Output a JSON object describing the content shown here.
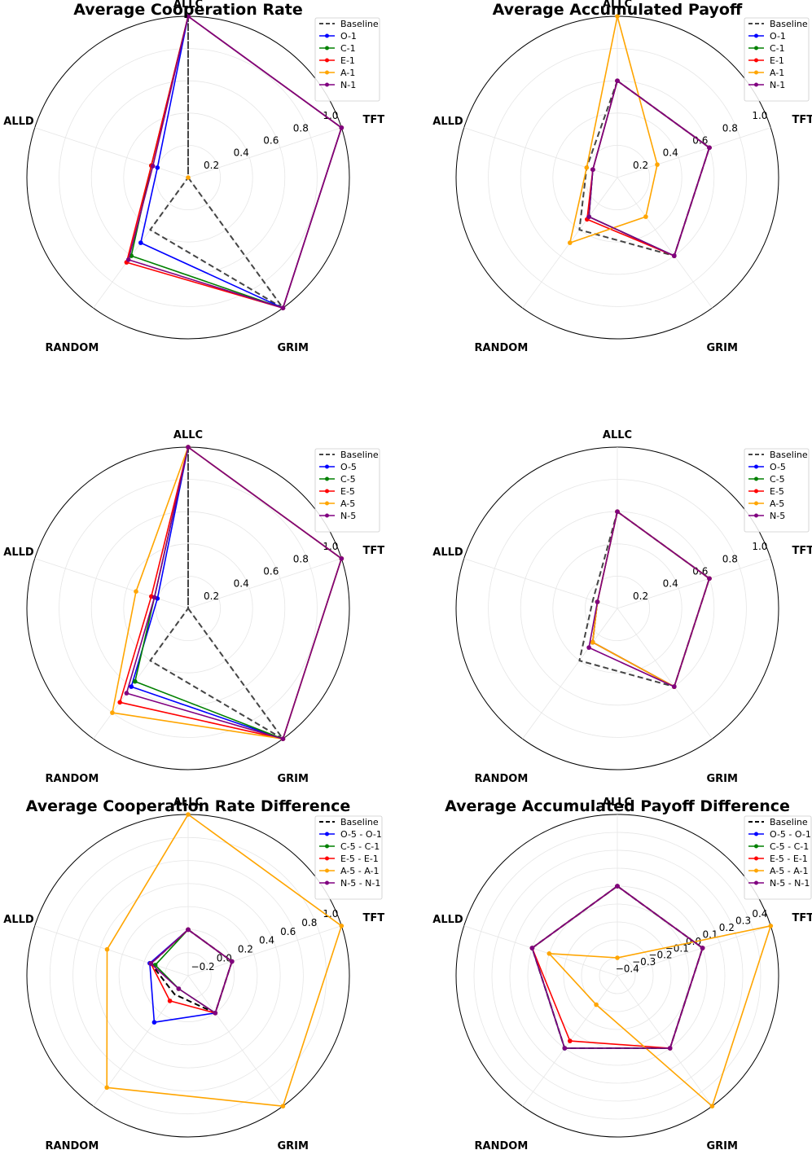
{
  "chart_data": [
    {
      "type": "radar",
      "title": "Average Cooperation Rate",
      "categories": [
        "ALLC",
        "TFT",
        "GRIM",
        "RANDOM",
        "ALLD"
      ],
      "radial_ticks": [
        "0.2",
        "0.4",
        "0.6",
        "0.8",
        "1.0"
      ],
      "tick_values": [
        0.2,
        0.4,
        0.6,
        0.8,
        1.0
      ],
      "rlim": [
        0,
        1.0
      ],
      "legend_position": "top-right",
      "series": [
        {
          "name": "Baseline",
          "color": "#444444",
          "dashed": true,
          "markers": false,
          "values": [
            1.0,
            0.0,
            1.0,
            0.4,
            0.0
          ]
        },
        {
          "name": "O-1",
          "color": "#0000ff",
          "values": [
            1.0,
            1.0,
            1.0,
            0.5,
            0.2
          ]
        },
        {
          "name": "C-1",
          "color": "#008000",
          "values": [
            1.0,
            1.0,
            1.0,
            0.6,
            0.24
          ]
        },
        {
          "name": "E-1",
          "color": "#ff0000",
          "values": [
            1.0,
            1.0,
            1.0,
            0.65,
            0.24
          ]
        },
        {
          "name": "A-1",
          "color": "#ffa500",
          "values": [
            null,
            null,
            null,
            null,
            null
          ],
          "extra_point": 0.0
        },
        {
          "name": "N-1",
          "color": "#800080",
          "values": [
            1.0,
            1.0,
            1.0,
            0.63,
            0.23
          ]
        }
      ]
    },
    {
      "type": "radar",
      "title": "Average Accumulated Payoff",
      "categories": [
        "ALLC",
        "TFT",
        "GRIM",
        "RANDOM",
        "ALLD"
      ],
      "radial_ticks": [
        "0.2",
        "0.4",
        "0.6",
        "0.8",
        "1.0"
      ],
      "tick_values": [
        0.2,
        0.4,
        0.6,
        0.8,
        1.0
      ],
      "rlim": [
        0,
        1.0
      ],
      "legend_position": "top-right",
      "series": [
        {
          "name": "Baseline",
          "color": "#444444",
          "dashed": true,
          "markers": false,
          "values": [
            0.6,
            0.6,
            0.6,
            0.4,
            0.2
          ]
        },
        {
          "name": "O-1",
          "color": "#0000ff",
          "values": [
            0.6,
            0.6,
            0.6,
            0.3,
            0.16
          ]
        },
        {
          "name": "C-1",
          "color": "#008000",
          "values": [
            0.6,
            0.6,
            0.6,
            0.3,
            0.16
          ]
        },
        {
          "name": "E-1",
          "color": "#ff0000",
          "values": [
            0.6,
            0.6,
            0.6,
            0.32,
            0.16
          ]
        },
        {
          "name": "A-1",
          "color": "#ffa500",
          "values": [
            1.0,
            0.26,
            0.3,
            0.5,
            0.2
          ]
        },
        {
          "name": "N-1",
          "color": "#800080",
          "values": [
            0.6,
            0.6,
            0.6,
            0.3,
            0.16
          ]
        }
      ]
    },
    {
      "type": "radar",
      "title": "",
      "categories": [
        "ALLC",
        "TFT",
        "GRIM",
        "RANDOM",
        "ALLD"
      ],
      "radial_ticks": [
        "0.2",
        "0.4",
        "0.6",
        "0.8",
        "1.0"
      ],
      "tick_values": [
        0.2,
        0.4,
        0.6,
        0.8,
        1.0
      ],
      "rlim": [
        0,
        1.0
      ],
      "legend_position": "top-right",
      "series": [
        {
          "name": "Baseline",
          "color": "#444444",
          "dashed": true,
          "markers": false,
          "values": [
            1.0,
            0.0,
            1.0,
            0.4,
            0.0
          ]
        },
        {
          "name": "O-5",
          "color": "#0000ff",
          "values": [
            1.0,
            1.0,
            1.0,
            0.6,
            0.2
          ]
        },
        {
          "name": "C-5",
          "color": "#008000",
          "values": [
            1.0,
            1.0,
            1.0,
            0.56,
            0.22
          ]
        },
        {
          "name": "E-5",
          "color": "#ff0000",
          "values": [
            1.0,
            1.0,
            1.0,
            0.72,
            0.24
          ]
        },
        {
          "name": "A-5",
          "color": "#ffa500",
          "values": [
            1.0,
            1.0,
            1.0,
            0.8,
            0.34
          ]
        },
        {
          "name": "N-5",
          "color": "#800080",
          "values": [
            1.0,
            1.0,
            1.0,
            0.65,
            0.22
          ]
        }
      ]
    },
    {
      "type": "radar",
      "title": "",
      "categories": [
        "ALLC",
        "TFT",
        "GRIM",
        "RANDOM",
        "ALLD"
      ],
      "radial_ticks": [
        "0.2",
        "0.4",
        "0.6",
        "0.8",
        "1.0"
      ],
      "tick_values": [
        0.2,
        0.4,
        0.6,
        0.8,
        1.0
      ],
      "rlim": [
        0,
        1.0
      ],
      "legend_position": "top-right",
      "series": [
        {
          "name": "Baseline",
          "color": "#444444",
          "dashed": true,
          "markers": false,
          "values": [
            0.6,
            0.6,
            0.6,
            0.4,
            0.16
          ]
        },
        {
          "name": "O-5",
          "color": "#0000ff",
          "values": [
            0.6,
            0.6,
            0.6,
            0.26,
            0.13
          ]
        },
        {
          "name": "C-5",
          "color": "#008000",
          "values": [
            0.6,
            0.6,
            0.6,
            0.26,
            0.13
          ]
        },
        {
          "name": "E-5",
          "color": "#ff0000",
          "values": [
            0.6,
            0.6,
            0.6,
            0.26,
            0.13
          ]
        },
        {
          "name": "A-5",
          "color": "#ffa500",
          "values": [
            0.6,
            0.6,
            0.6,
            0.26,
            0.13
          ]
        },
        {
          "name": "N-5",
          "color": "#800080",
          "values": [
            0.6,
            0.6,
            0.6,
            0.3,
            0.13
          ]
        }
      ]
    },
    {
      "type": "radar",
      "title": "Average Cooperation Rate Difference",
      "categories": [
        "ALLC",
        "TFT",
        "GRIM",
        "RANDOM",
        "ALLD"
      ],
      "radial_ticks": [
        "−0.2",
        "0.0",
        "0.2",
        "0.4",
        "0.6",
        "0.8",
        "1.0"
      ],
      "tick_values": [
        -0.2,
        0.0,
        0.2,
        0.4,
        0.6,
        0.8,
        1.0
      ],
      "rlim": [
        -0.4,
        1.0
      ],
      "legend_position": "top-right",
      "series": [
        {
          "name": "Baseline",
          "color": "#000000",
          "dashed": true,
          "markers": false,
          "values": [
            0.0,
            0.0,
            0.0,
            -0.2,
            -0.06
          ]
        },
        {
          "name": "O-5 - O-1",
          "color": "#0000ff",
          "values": [
            0.0,
            0.0,
            0.0,
            0.1,
            -0.05
          ]
        },
        {
          "name": "C-5 - C-1",
          "color": "#008000",
          "values": [
            0.0,
            0.0,
            0.0,
            -0.26,
            -0.1
          ]
        },
        {
          "name": "E-5 - E-1",
          "color": "#ff0000",
          "values": [
            0.0,
            0.0,
            0.0,
            -0.13,
            -0.06
          ]
        },
        {
          "name": "A-5 - A-1",
          "color": "#ffa500",
          "values": [
            1.0,
            1.0,
            1.0,
            0.8,
            0.34
          ]
        },
        {
          "name": "N-5 - N-1",
          "color": "#800080",
          "values": [
            0.0,
            0.0,
            0.0,
            -0.26,
            -0.06
          ]
        }
      ]
    },
    {
      "type": "radar",
      "title": "Average Accumulated Payoff Difference",
      "categories": [
        "ALLC",
        "TFT",
        "GRIM",
        "RANDOM",
        "ALLD"
      ],
      "radial_ticks": [
        "−0.4",
        "−0.3",
        "−0.2",
        "−0.1",
        "0.0",
        "0.1",
        "0.2",
        "0.3",
        "0.4"
      ],
      "tick_values": [
        -0.4,
        -0.3,
        -0.2,
        -0.1,
        0.0,
        0.1,
        0.2,
        0.3,
        0.4
      ],
      "rlim": [
        -0.5,
        0.4
      ],
      "legend_position": "top-right",
      "series": [
        {
          "name": "Baseline",
          "color": "#000000",
          "dashed": true,
          "markers": false,
          "values": [
            0.0,
            0.0,
            0.0,
            0.0,
            0.0
          ]
        },
        {
          "name": "O-5 - O-1",
          "color": "#0000ff",
          "values": [
            0.0,
            0.0,
            0.0,
            0.0,
            0.0
          ]
        },
        {
          "name": "C-5 - C-1",
          "color": "#008000",
          "values": [
            0.0,
            0.0,
            0.0,
            0.0,
            0.0
          ]
        },
        {
          "name": "E-5 - E-1",
          "color": "#ff0000",
          "values": [
            0.0,
            0.0,
            0.0,
            -0.05,
            0.0
          ]
        },
        {
          "name": "A-5 - A-1",
          "color": "#ffa500",
          "values": [
            -0.4,
            0.4,
            0.4,
            -0.3,
            -0.1
          ]
        },
        {
          "name": "N-5 - N-1",
          "color": "#800080",
          "values": [
            0.0,
            0.0,
            0.0,
            0.0,
            0.0
          ]
        }
      ]
    }
  ]
}
